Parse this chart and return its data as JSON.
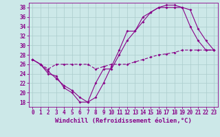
{
  "xlabel": "Windchill (Refroidissement éolien,°C)",
  "x_hours": [
    0,
    1,
    2,
    3,
    4,
    5,
    6,
    7,
    8,
    9,
    10,
    11,
    12,
    13,
    14,
    15,
    16,
    17,
    18,
    19,
    20,
    21,
    22,
    23
  ],
  "line1": [
    27,
    26,
    24,
    23.5,
    21,
    20,
    18,
    18,
    22,
    25,
    25,
    28,
    31,
    33,
    36,
    37,
    38,
    38,
    38,
    38,
    34,
    31,
    29,
    29
  ],
  "line2": [
    27,
    26,
    24.5,
    23,
    21.5,
    20.5,
    19,
    18,
    19,
    22,
    25.5,
    29,
    33,
    33,
    35,
    37,
    38,
    38.5,
    38.5,
    38,
    37.5,
    33.5,
    31,
    29
  ],
  "line3": [
    27,
    26,
    25,
    26,
    26,
    26,
    26,
    26,
    25,
    25.5,
    26,
    26,
    26,
    26.5,
    27,
    27.5,
    28,
    28.2,
    28.5,
    29,
    29,
    29,
    29,
    29
  ],
  "line_color": "#880088",
  "bg_color": "#cce8e8",
  "grid_color": "#aacccc",
  "marker": "D",
  "marker_size": 2,
  "ylim": [
    17,
    39
  ],
  "xlim": [
    -0.5,
    23.5
  ],
  "yticks": [
    18,
    20,
    22,
    24,
    26,
    28,
    30,
    32,
    34,
    36,
    38
  ],
  "xticks": [
    0,
    1,
    2,
    3,
    4,
    5,
    6,
    7,
    8,
    9,
    10,
    11,
    12,
    13,
    14,
    15,
    16,
    17,
    18,
    19,
    20,
    21,
    22,
    23
  ],
  "tick_fontsize": 5.5,
  "xlabel_fontsize": 6.5,
  "linewidth": 0.8
}
